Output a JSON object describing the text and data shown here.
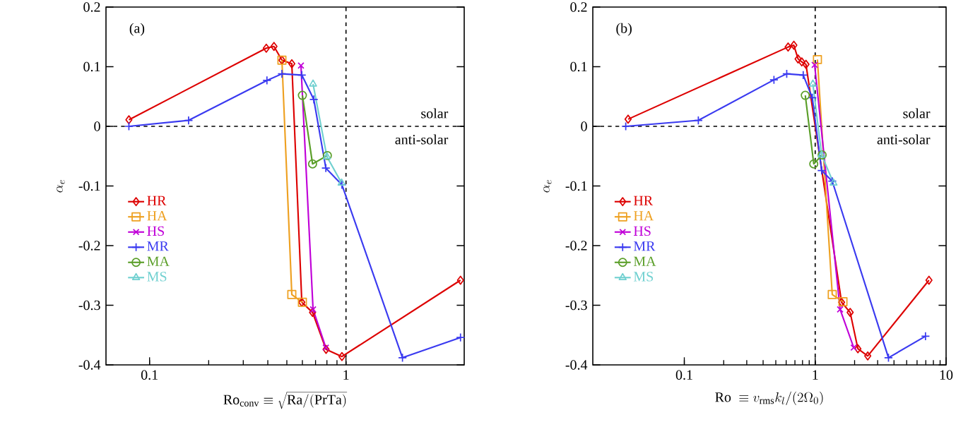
{
  "chart_data": [
    {
      "type": "line",
      "xlabel": "\\mathrm{Ro}_{\\mathrm{conv}} \\equiv \\sqrt{\\mathrm{Ra}/(\\mathrm{PrTa})}",
      "ylabel": "\\alpha_e",
      "annotations": [
        "(a)",
        "solar",
        "anti-solar"
      ],
      "log": "x",
      "xlim": [
        0.06,
        4
      ],
      "xticks": [
        0.1,
        1
      ],
      "ylim": [
        -0.4,
        0.2
      ],
      "yticks": [
        -0.4,
        -0.3,
        -0.2,
        -0.1,
        0,
        0.1,
        0.2
      ],
      "legend": "left",
      "grid": false,
      "ref_lines": [
        {
          "axis": "x",
          "value": 1,
          "line_style": "dashed",
          "color": "#000000"
        },
        {
          "axis": "y",
          "value": 0,
          "line_style": "dashed",
          "color": "#000000"
        }
      ],
      "series": [
        {
          "name": "HR",
          "color": "#dd0000",
          "marker": "diamond",
          "x": [
            0.0785,
            0.393,
            0.43,
            0.472,
            0.53,
            0.596,
            0.676,
            0.792,
            0.954,
            3.83
          ],
          "values": [
            0.011,
            0.131,
            0.134,
            0.111,
            0.105,
            -0.295,
            -0.312,
            -0.374,
            -0.386,
            -0.258
          ]
        },
        {
          "name": "HA",
          "color": "#eea020",
          "marker": "square",
          "x": [
            0.472,
            0.53,
            0.6
          ],
          "values": [
            0.111,
            -0.282,
            -0.295
          ]
        },
        {
          "name": "HS",
          "color": "#c000d8",
          "marker": "cross",
          "x": [
            0.59,
            0.68,
            0.79
          ],
          "values": [
            0.102,
            -0.307,
            -0.371
          ]
        },
        {
          "name": "MR",
          "color": "#3a3af0",
          "marker": "plus",
          "x": [
            0.0785,
            0.158,
            0.396,
            0.472,
            0.596,
            0.686,
            0.79,
            0.954,
            1.94,
            3.83
          ],
          "values": [
            0.0,
            0.01,
            0.077,
            0.088,
            0.086,
            0.045,
            -0.07,
            -0.098,
            -0.388,
            -0.354
          ]
        },
        {
          "name": "MA",
          "color": "#5a9e28",
          "marker": "circle",
          "x": [
            0.6,
            0.676,
            0.804
          ],
          "values": [
            0.052,
            -0.063,
            -0.049
          ]
        },
        {
          "name": "MS",
          "color": "#70d0d0",
          "marker": "triangle",
          "x": [
            0.68,
            0.8,
            0.95
          ],
          "values": [
            0.071,
            -0.051,
            -0.095
          ]
        }
      ]
    },
    {
      "type": "line",
      "xlabel": "\\mathrm{Ro}\\ \\equiv v_{\\mathrm{rms}} k_l/(2\\Omega_0)",
      "ylabel": "\\alpha_e",
      "annotations": [
        "(b)",
        "solar",
        "anti-solar"
      ],
      "log": "x",
      "xlim": [
        0.02,
        10
      ],
      "xticks": [
        0.1,
        1,
        10
      ],
      "ylim": [
        -0.4,
        0.2
      ],
      "yticks": [
        -0.4,
        -0.3,
        -0.2,
        -0.1,
        0,
        0.1,
        0.2
      ],
      "legend": "left",
      "grid": false,
      "ref_lines": [
        {
          "axis": "x",
          "value": 1,
          "line_style": "dashed",
          "color": "#000000"
        },
        {
          "axis": "y",
          "value": 0,
          "line_style": "dashed",
          "color": "#000000"
        }
      ],
      "series": [
        {
          "name": "HR",
          "color": "#dd0000",
          "marker": "diamond",
          "x": [
            0.0372,
            0.621,
            0.687,
            0.74,
            0.79,
            0.85,
            1.59,
            1.85,
            2.12,
            2.52,
            7.4
          ],
          "values": [
            0.012,
            0.133,
            0.136,
            0.113,
            0.108,
            0.104,
            -0.295,
            -0.312,
            -0.373,
            -0.385,
            -0.258
          ]
        },
        {
          "name": "HA",
          "color": "#eea020",
          "marker": "square",
          "x": [
            1.04,
            1.35,
            1.63
          ],
          "values": [
            0.112,
            -0.282,
            -0.294
          ]
        },
        {
          "name": "HS",
          "color": "#c000d8",
          "marker": "cross",
          "x": [
            0.99,
            1.55,
            1.97
          ],
          "values": [
            0.103,
            -0.307,
            -0.371
          ]
        },
        {
          "name": "MR",
          "color": "#3a3af0",
          "marker": "plus",
          "x": [
            0.0357,
            0.128,
            0.484,
            0.606,
            0.81,
            0.95,
            1.12,
            1.35,
            3.63,
            6.96
          ],
          "values": [
            0.0,
            0.01,
            0.078,
            0.088,
            0.086,
            0.048,
            -0.074,
            -0.092,
            -0.388,
            -0.352
          ]
        },
        {
          "name": "MA",
          "color": "#5a9e28",
          "marker": "circle",
          "x": [
            0.84,
            0.975,
            1.13
          ],
          "values": [
            0.052,
            -0.063,
            -0.048
          ]
        },
        {
          "name": "MS",
          "color": "#70d0d0",
          "marker": "triangle",
          "x": [
            0.96,
            1.12,
            1.38
          ],
          "values": [
            0.071,
            -0.048,
            -0.095
          ]
        }
      ]
    }
  ]
}
